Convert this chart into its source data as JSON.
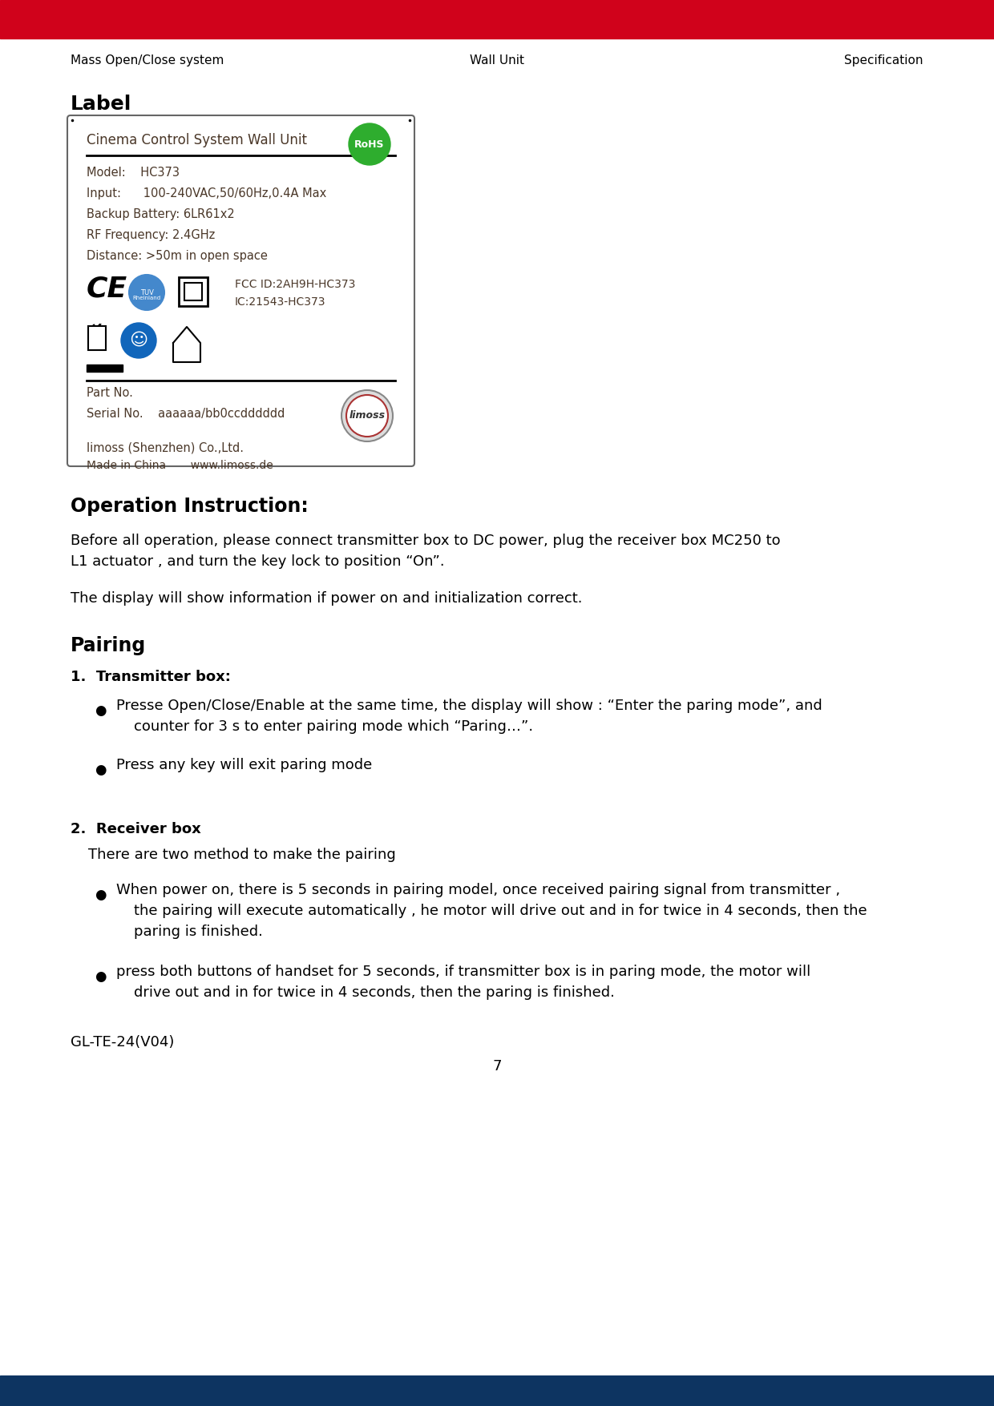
{
  "header_bar_color": "#D0021B",
  "footer_bar_color": "#0D3461",
  "header_left": "Mass Open/Close system",
  "header_center": "Wall Unit",
  "header_right": "Specification",
  "label_title": "Label",
  "label_inner_title": "Cinema Control System Wall Unit",
  "label_model": "Model:    HC373",
  "label_input": "Input:      100-240VAC,50/60Hz,0.4A Max",
  "label_battery": "Backup Battery: 6LR61x2",
  "label_rf": "RF Frequency: 2.4GHz",
  "label_distance": "Distance: >50m in open space",
  "label_fcc": "FCC ID:2AH9H-HC373",
  "label_ic": "IC:21543-HC373",
  "label_part": "Part No.",
  "label_serial": "Serial No.    aaaaaa/bb0ccdddddd",
  "label_company": "limoss (Shenzhen) Co.,Ltd.",
  "label_made": "Made in China       www.limoss.de",
  "rohs_color": "#2EAD2E",
  "label_text_color": "#4A3728",
  "op_title": "Operation Instruction:",
  "op_para1_line1": "Before all operation, please connect transmitter box to DC power, plug the receiver box MC250 to",
  "op_para1_line2": "L1 actuator , and turn the key lock to position “On”.",
  "op_para2": "The display will show information if power on and initialization correct.",
  "pairing_title": "Pairing",
  "tx_title": "1.  Transmitter box:",
  "bullet1_line1": "Presse Open/Close/Enable at the same time, the display will show : “Enter the paring mode”, and",
  "bullet1_line2": "counter for 3 s to enter pairing mode which “Paring…”.",
  "bullet2": "Press any key will exit paring mode",
  "rx_title": "2.  Receiver box",
  "rx_para": "There are two method to make the pairing",
  "rx_b1_line1": "When power on, there is 5 seconds in pairing model, once received pairing signal from transmitter ,",
  "rx_b1_line2": "the pairing will execute automatically , he motor will drive out and in for twice in 4 seconds, then the",
  "rx_b1_line3": "paring is finished.",
  "rx_b2_line1": "press both buttons of handset for 5 seconds, if transmitter box is in paring mode, the motor will",
  "rx_b2_line2": "drive out and in for twice in 4 seconds, then the paring is finished.",
  "gl_text": "GL-TE-24(V04)",
  "page_num": "7",
  "bg_color": "#FFFFFF",
  "text_color": "#000000"
}
